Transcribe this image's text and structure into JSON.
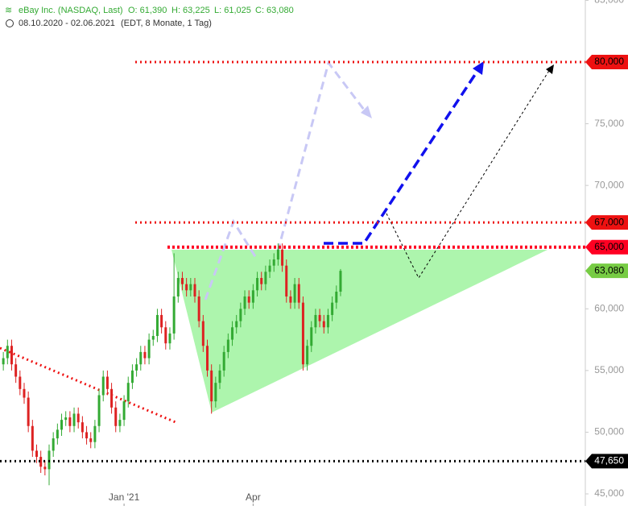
{
  "header": {
    "title": "eBay Inc. (NASDAQ, Last)",
    "open": "O: 61,390",
    "high": "H: 63,225",
    "low": "L: 61,025",
    "close": "C: 63,080",
    "range": "08.10.2020 - 02.06.2021",
    "info": "(EDT, 8 Monate, 1 Tag)"
  },
  "chart_data": {
    "type": "candlestick",
    "open": [
      55500,
      56000,
      57000,
      55500,
      54500,
      53500,
      52800,
      50500,
      48500,
      48000,
      47200,
      47000,
      48500,
      49500,
      50200,
      51000,
      51200,
      50500,
      51500,
      50800,
      50000,
      49500,
      49200,
      50500,
      53000,
      54500,
      53500,
      52000,
      50500,
      51000,
      52500,
      54000,
      55000,
      55500,
      56500,
      56000,
      57500,
      57800,
      59500,
      58500,
      57200,
      58000,
      61000,
      62500,
      62000,
      61500,
      62000,
      61000,
      59000,
      57000,
      55000,
      52500,
      54000,
      55000,
      56500,
      57500,
      58500,
      59000,
      60000,
      61000,
      60500,
      61500,
      62500,
      62000,
      63000,
      63500,
      64000,
      64800,
      63500,
      61000,
      60500,
      62000,
      60500,
      55500,
      57000,
      58500,
      59500,
      59000,
      58500,
      59500,
      60500,
      61390
    ],
    "high": [
      56500,
      57500,
      57500,
      56000,
      55000,
      54000,
      53300,
      51000,
      49000,
      48500,
      47700,
      49000,
      50000,
      50700,
      51500,
      51700,
      51700,
      52000,
      52000,
      51300,
      50500,
      50000,
      51000,
      53500,
      55000,
      55000,
      54000,
      52500,
      51500,
      53000,
      54500,
      55500,
      56000,
      57000,
      57000,
      58000,
      58300,
      60000,
      60000,
      59000,
      58500,
      64500,
      63000,
      63000,
      62500,
      62500,
      62500,
      61500,
      59500,
      57500,
      55500,
      54500,
      55500,
      57000,
      58000,
      59000,
      59500,
      60500,
      61500,
      61500,
      62000,
      63000,
      63000,
      63500,
      64000,
      64500,
      65300,
      65300,
      64000,
      61500,
      62500,
      62500,
      61000,
      57500,
      59000,
      60000,
      60000,
      59500,
      60000,
      61000,
      61890,
      63225
    ],
    "low": [
      55000,
      55500,
      55000,
      54000,
      53000,
      52300,
      50000,
      48000,
      47500,
      46700,
      46500,
      45700,
      48000,
      49000,
      49700,
      50500,
      50000,
      50000,
      50300,
      49500,
      49000,
      48700,
      48700,
      50000,
      52500,
      53000,
      51500,
      50000,
      50000,
      50500,
      52000,
      53500,
      54500,
      55000,
      55500,
      55500,
      57000,
      57300,
      58000,
      56700,
      56700,
      57500,
      60500,
      61500,
      61000,
      61000,
      60500,
      58500,
      56500,
      54500,
      51500,
      52000,
      53500,
      54500,
      56000,
      57000,
      58000,
      58500,
      59500,
      60000,
      60000,
      61000,
      61500,
      61500,
      62500,
      63000,
      63500,
      63000,
      60500,
      60000,
      60000,
      60000,
      55000,
      55000,
      56500,
      58000,
      58500,
      58000,
      58000,
      59000,
      60000,
      61025
    ],
    "close": [
      56000,
      57000,
      55500,
      54500,
      53500,
      52800,
      50500,
      48500,
      48000,
      47200,
      47000,
      48500,
      49500,
      50200,
      51000,
      51200,
      50500,
      51500,
      50800,
      50000,
      49500,
      49200,
      50500,
      53000,
      54500,
      53500,
      52000,
      50500,
      51000,
      52500,
      54000,
      55000,
      55500,
      56500,
      56000,
      57500,
      57800,
      59500,
      58500,
      57200,
      58000,
      61000,
      62500,
      62000,
      61500,
      62000,
      61000,
      59000,
      57000,
      55000,
      52500,
      54000,
      55000,
      56500,
      57500,
      58500,
      59000,
      60000,
      61000,
      60500,
      61500,
      62500,
      62000,
      63000,
      63500,
      64000,
      64800,
      63500,
      61000,
      60500,
      62000,
      60500,
      55500,
      57000,
      58500,
      59500,
      59000,
      58500,
      59500,
      60500,
      61390,
      63080
    ],
    "up_color": "#33aa33",
    "down_color": "#dd2222",
    "xlim": [
      -0.8,
      139.8
    ],
    "xticks": [
      {
        "value": 29,
        "label": "Jan '21"
      },
      {
        "value": 60,
        "label": "Apr"
      }
    ],
    "ylim": [
      44020,
      85030
    ],
    "yticks": [
      {
        "value": 45000,
        "label": "45,000"
      },
      {
        "value": 50000,
        "label": "50,000"
      },
      {
        "value": 55000,
        "label": "55,000"
      },
      {
        "value": 60000,
        "label": "60,000"
      },
      {
        "value": 65000,
        "label": "65,000"
      },
      {
        "value": 70000,
        "label": "70,000"
      },
      {
        "value": 75000,
        "label": "75,000"
      },
      {
        "value": 80000,
        "label": "80,000"
      },
      {
        "value": 85000,
        "label": "85,000"
      }
    ],
    "levels": [
      {
        "value": 80000,
        "label": "80,000",
        "color": "#ee1111"
      },
      {
        "value": 67000,
        "label": "67,000",
        "color": "#ee1111"
      },
      {
        "value": 65000,
        "label": "65,000",
        "color": "#ff0022"
      },
      {
        "value": 63080,
        "label": "63,080",
        "color": "#77cc44"
      },
      {
        "value": 47650,
        "label": "47,650",
        "color": "#000000"
      }
    ]
  }
}
